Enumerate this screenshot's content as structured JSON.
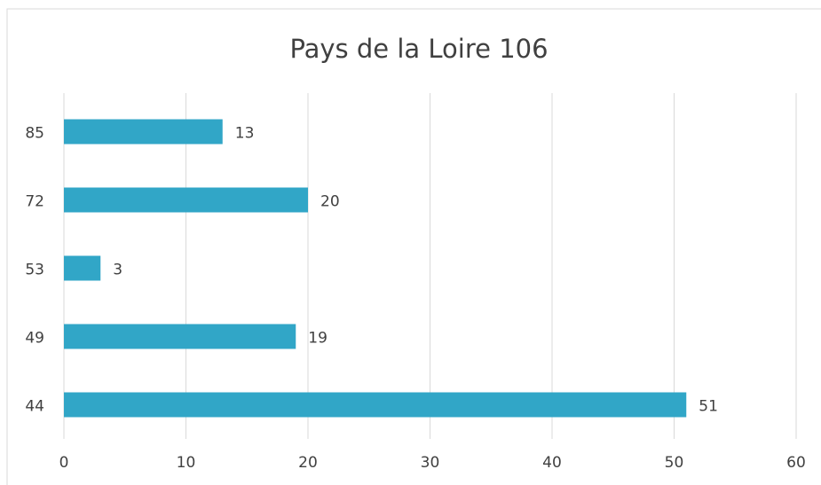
{
  "chart_data": {
    "type": "hbar",
    "title": "Pays de la Loire 106",
    "categories": [
      "44",
      "49",
      "53",
      "72",
      "85"
    ],
    "values": [
      51,
      19,
      3,
      20,
      13
    ],
    "color": "#31a6c7",
    "xlim": [
      0,
      60
    ],
    "xticks": [
      0,
      10,
      20,
      30,
      40,
      50,
      60
    ],
    "grid": true
  }
}
